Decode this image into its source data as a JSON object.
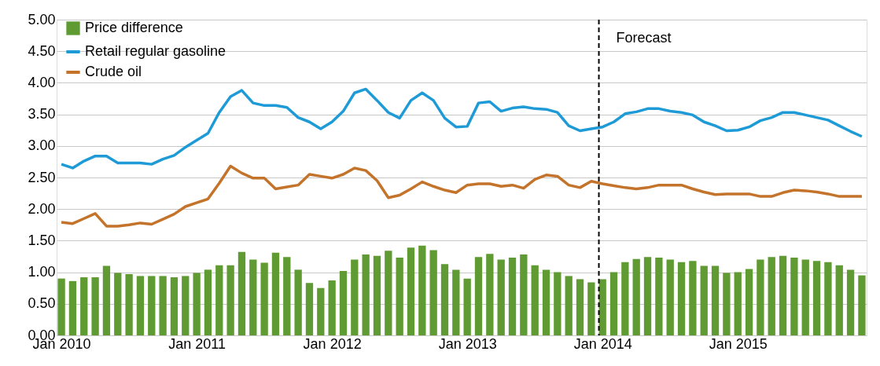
{
  "chart_data": {
    "type": "bar",
    "categories": [
      "Jan 2010",
      null,
      null,
      null,
      null,
      null,
      null,
      null,
      null,
      null,
      null,
      null,
      "Jan 2011",
      null,
      null,
      null,
      null,
      null,
      null,
      null,
      null,
      null,
      null,
      null,
      "Jan 2012",
      null,
      null,
      null,
      null,
      null,
      null,
      null,
      null,
      null,
      null,
      null,
      "Jan 2013",
      null,
      null,
      null,
      null,
      null,
      null,
      null,
      null,
      null,
      null,
      null,
      "Jan 2014",
      null,
      null,
      null,
      null,
      null,
      null,
      null,
      null,
      null,
      null,
      null,
      "Jan 2015",
      null,
      null,
      null,
      null,
      null,
      null,
      null,
      null,
      null,
      null,
      null
    ],
    "series": [
      {
        "name": "Price difference",
        "color": "#5f9b32",
        "values": [
          0.9,
          0.86,
          0.92,
          0.92,
          1.1,
          0.99,
          0.97,
          0.94,
          0.94,
          0.94,
          0.92,
          0.94,
          0.99,
          1.04,
          1.11,
          1.11,
          1.32,
          1.2,
          1.15,
          1.31,
          1.24,
          1.04,
          0.83,
          0.75,
          0.87,
          1.02,
          1.2,
          1.28,
          1.26,
          1.34,
          1.23,
          1.39,
          1.42,
          1.35,
          1.13,
          1.04,
          0.9,
          1.24,
          1.29,
          1.2,
          1.23,
          1.28,
          1.11,
          1.04,
          1.0,
          0.94,
          0.89,
          0.84,
          0.89,
          1.0,
          1.16,
          1.21,
          1.24,
          1.23,
          1.2,
          1.16,
          1.18,
          1.1,
          1.1,
          0.99,
          1.0,
          1.05,
          1.2,
          1.24,
          1.26,
          1.23,
          1.2,
          1.18,
          1.16,
          1.11,
          1.04,
          0.95
        ]
      },
      {
        "name": "Retail regular gasoline",
        "type": "line",
        "color": "#1e9bd7",
        "values": [
          2.71,
          2.65,
          2.76,
          2.84,
          2.84,
          2.73,
          2.73,
          2.73,
          2.71,
          2.79,
          2.85,
          2.98,
          3.09,
          3.2,
          3.53,
          3.78,
          3.88,
          3.68,
          3.64,
          3.64,
          3.61,
          3.45,
          3.38,
          3.27,
          3.38,
          3.55,
          3.84,
          3.9,
          3.72,
          3.53,
          3.44,
          3.72,
          3.84,
          3.72,
          3.44,
          3.3,
          3.31,
          3.68,
          3.7,
          3.55,
          3.6,
          3.62,
          3.59,
          3.58,
          3.53,
          3.32,
          3.24,
          3.27,
          3.3,
          3.38,
          3.51,
          3.54,
          3.59,
          3.59,
          3.55,
          3.53,
          3.49,
          3.38,
          3.32,
          3.24,
          3.25,
          3.3,
          3.4,
          3.45,
          3.53,
          3.53,
          3.49,
          3.45,
          3.41,
          3.32,
          3.23,
          3.15
        ]
      },
      {
        "name": "Crude oil",
        "type": "line",
        "color": "#c4732b",
        "values": [
          1.79,
          1.77,
          1.85,
          1.93,
          1.73,
          1.73,
          1.75,
          1.78,
          1.76,
          1.84,
          1.92,
          2.04,
          2.1,
          2.16,
          2.41,
          2.68,
          2.57,
          2.49,
          2.49,
          2.32,
          2.35,
          2.38,
          2.55,
          2.52,
          2.49,
          2.55,
          2.65,
          2.61,
          2.45,
          2.18,
          2.22,
          2.32,
          2.43,
          2.36,
          2.3,
          2.26,
          2.38,
          2.4,
          2.4,
          2.36,
          2.38,
          2.33,
          2.47,
          2.54,
          2.52,
          2.38,
          2.34,
          2.44,
          2.4,
          2.37,
          2.34,
          2.32,
          2.34,
          2.38,
          2.38,
          2.38,
          2.32,
          2.27,
          2.23,
          2.24,
          2.24,
          2.24,
          2.2,
          2.2,
          2.26,
          2.3,
          2.29,
          2.27,
          2.24,
          2.2,
          2.2,
          2.2
        ]
      }
    ],
    "ylim": [
      0,
      5
    ],
    "yticks": [
      {
        "value": 0,
        "label": "0.00"
      },
      {
        "value": 0.5,
        "label": "0.50"
      },
      {
        "value": 1,
        "label": "1.00"
      },
      {
        "value": 1.5,
        "label": "1.50"
      },
      {
        "value": 2,
        "label": "2.00"
      },
      {
        "value": 2.5,
        "label": "2.50"
      },
      {
        "value": 3,
        "label": "3.00"
      },
      {
        "value": 3.5,
        "label": "3.50"
      },
      {
        "value": 4,
        "label": "4.00"
      },
      {
        "value": 4.5,
        "label": "4.50"
      },
      {
        "value": 5,
        "label": "5.00"
      }
    ],
    "ref_lines": [
      {
        "axis": "x",
        "value": "Jan 2014",
        "label": "Forecast",
        "color": "#000000",
        "line_style": "dashed"
      }
    ],
    "grid": "y",
    "legend": "top left",
    "marker": "none",
    "line_style": "solid"
  }
}
